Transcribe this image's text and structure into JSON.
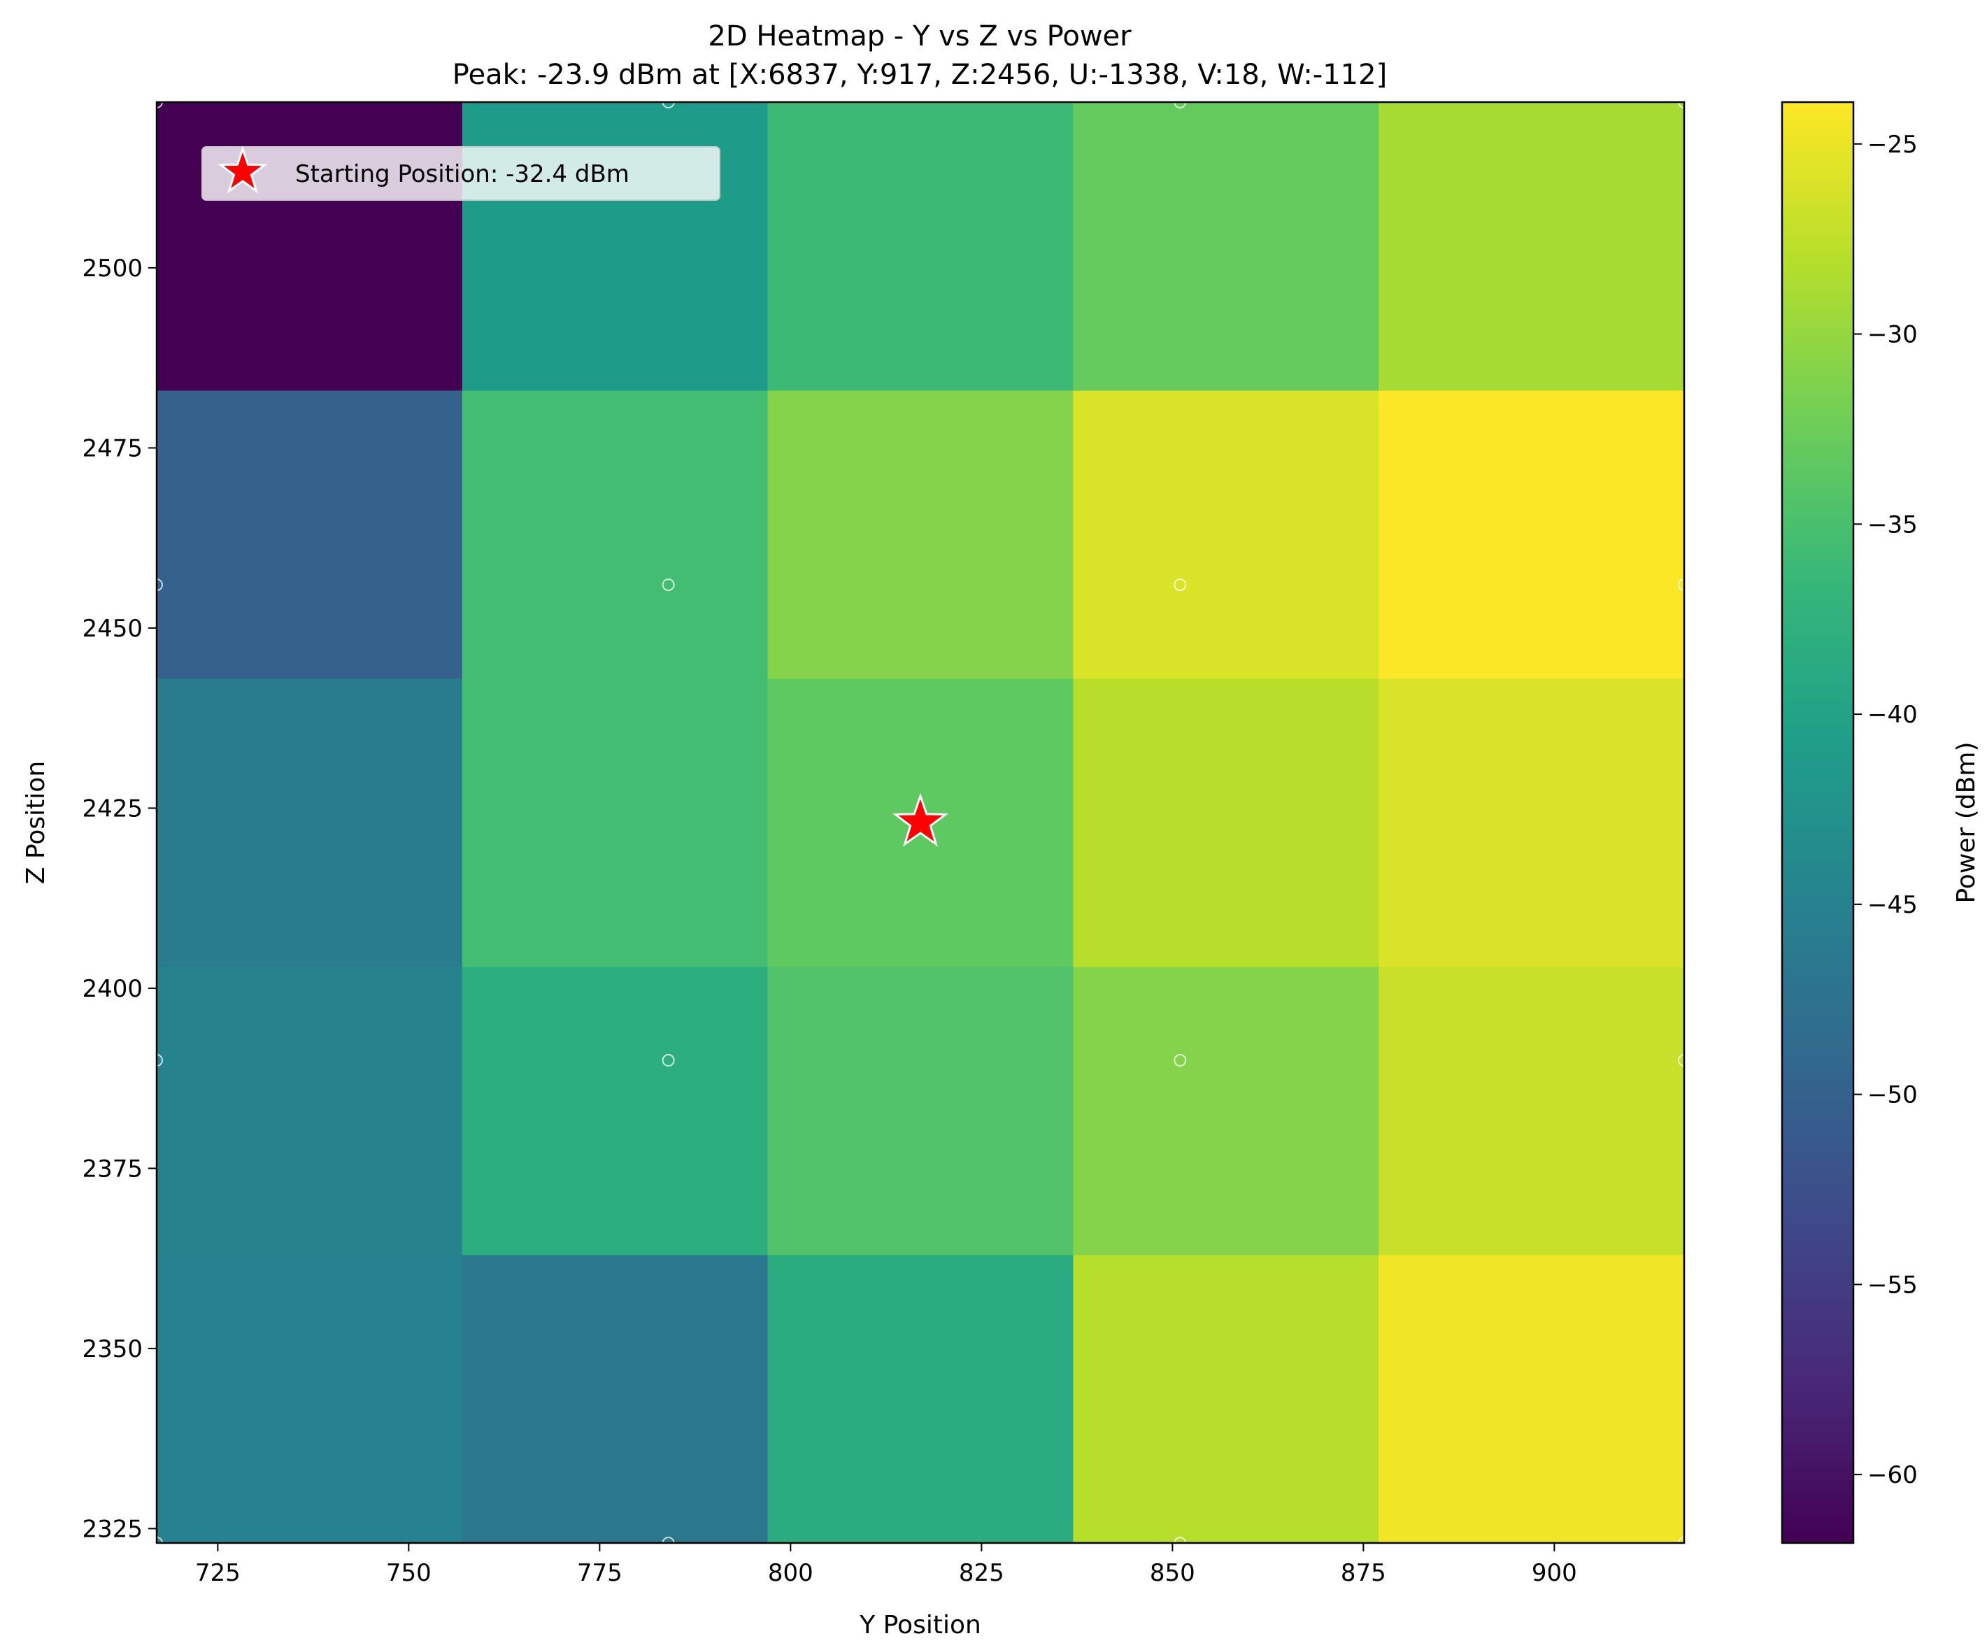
{
  "chart_data": {
    "type": "heatmap",
    "title": "2D Heatmap - Y vs Z vs Power",
    "subtitle": "Peak: -23.9 dBm at [X:6837, Y:917, Z:2456, U:-1338, V:18, W:-112]",
    "xlabel": "Y Position",
    "ylabel": "Z Position",
    "colorbar_label": "Power (dBm)",
    "colormap": "viridis",
    "clim": [
      -61.8,
      -23.9
    ],
    "xlim": [
      717,
      917
    ],
    "ylim": [
      2323,
      2523
    ],
    "x_ticks": [
      725,
      750,
      775,
      800,
      825,
      850,
      875,
      900
    ],
    "y_ticks": [
      2325,
      2350,
      2375,
      2400,
      2425,
      2450,
      2475,
      2500
    ],
    "colorbar_ticks": [
      -25,
      -30,
      -35,
      -40,
      -45,
      -50,
      -55,
      -60
    ],
    "x_edges": [
      717,
      757,
      797,
      837,
      877,
      917
    ],
    "y_edges": [
      2323,
      2363,
      2403,
      2443,
      2483,
      2523
    ],
    "z_values": [
      [
        -45.0,
        -46.5,
        -38.5,
        -28.0,
        -24.6
      ],
      [
        -44.8,
        -38.0,
        -34.5,
        -31.0,
        -27.0
      ],
      [
        -46.0,
        -35.5,
        -33.5,
        -28.0,
        -26.0
      ],
      [
        -50.0,
        -35.5,
        -31.0,
        -26.0,
        -24.0
      ],
      [
        -61.8,
        -41.0,
        -36.0,
        -33.0,
        -29.0
      ]
    ],
    "sample_points": {
      "y": [
        717,
        784,
        851,
        917
      ],
      "z": [
        2323,
        2390,
        2456,
        2523
      ]
    },
    "marker": {
      "y": 817,
      "z": 2423,
      "symbol": "star",
      "color": "#ff0000"
    },
    "legend": {
      "label": "Starting Position: -32.4 dBm",
      "placement": "upper-left"
    },
    "grid": false
  }
}
